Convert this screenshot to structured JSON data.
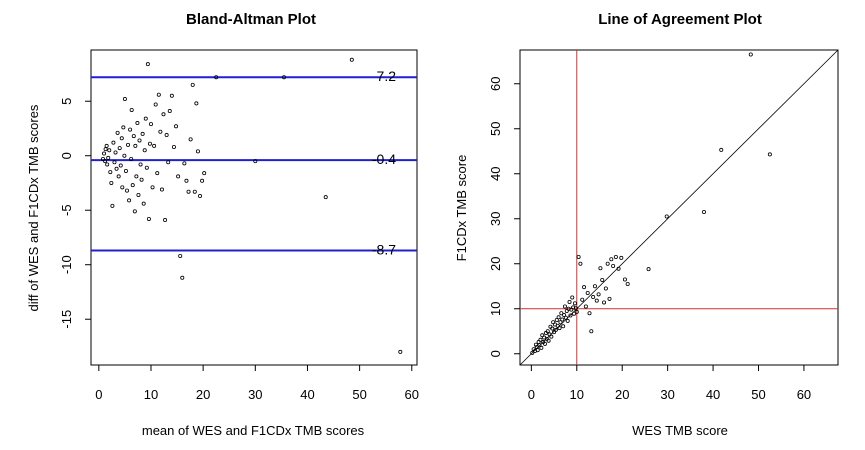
{
  "chart_data": [
    {
      "type": "scatter",
      "title": "Bland-Altman Plot",
      "xlabel": "mean of WES and F1CDx TMB scores",
      "ylabel": "diff of WES and F1CDx TMB scores",
      "xlim": [
        -1.5,
        61
      ],
      "ylim": [
        -19.2,
        9.7
      ],
      "xticks": [
        "0",
        "10",
        "20",
        "30",
        "40",
        "50",
        "60"
      ],
      "yticks": [
        "-15",
        "-10",
        "-5",
        "0",
        "5"
      ],
      "hlines": [
        {
          "y": 7.2,
          "label": "7.2"
        },
        {
          "y": -0.4,
          "label": "-0.4"
        },
        {
          "y": -8.7,
          "label": "-8.7"
        }
      ],
      "line_color": "#2020d0",
      "points": [
        [
          0.8,
          -0.3
        ],
        [
          1.0,
          0.2
        ],
        [
          1.2,
          -0.5
        ],
        [
          1.3,
          0.6
        ],
        [
          1.5,
          0.9
        ],
        [
          1.6,
          -0.8
        ],
        [
          1.8,
          -0.2
        ],
        [
          2.0,
          0.5
        ],
        [
          2.2,
          -1.5
        ],
        [
          2.4,
          -2.5
        ],
        [
          2.6,
          -4.6
        ],
        [
          2.8,
          1.2
        ],
        [
          3.0,
          -0.6
        ],
        [
          3.2,
          0.3
        ],
        [
          3.4,
          -1.2
        ],
        [
          3.6,
          2.1
        ],
        [
          3.8,
          -1.9
        ],
        [
          4.0,
          0.7
        ],
        [
          4.2,
          -0.9
        ],
        [
          4.4,
          1.6
        ],
        [
          4.5,
          -2.9
        ],
        [
          4.7,
          2.6
        ],
        [
          4.9,
          0.0
        ],
        [
          5.0,
          5.2
        ],
        [
          5.2,
          -1.4
        ],
        [
          5.4,
          -3.2
        ],
        [
          5.6,
          1.0
        ],
        [
          5.8,
          -4.1
        ],
        [
          6.0,
          2.4
        ],
        [
          6.2,
          -0.3
        ],
        [
          6.3,
          4.2
        ],
        [
          6.5,
          -2.7
        ],
        [
          6.7,
          1.8
        ],
        [
          6.9,
          -5.1
        ],
        [
          7.0,
          0.9
        ],
        [
          7.2,
          -1.9
        ],
        [
          7.4,
          3.0
        ],
        [
          7.6,
          -3.6
        ],
        [
          7.8,
          1.4
        ],
        [
          8.0,
          -0.8
        ],
        [
          8.2,
          -2.2
        ],
        [
          8.4,
          2.0
        ],
        [
          8.6,
          -4.4
        ],
        [
          8.8,
          0.5
        ],
        [
          9.0,
          3.4
        ],
        [
          9.2,
          -1.1
        ],
        [
          9.4,
          8.4
        ],
        [
          9.6,
          -5.8
        ],
        [
          9.8,
          1.1
        ],
        [
          10.0,
          2.9
        ],
        [
          10.3,
          -2.9
        ],
        [
          10.6,
          0.9
        ],
        [
          10.9,
          4.7
        ],
        [
          11.2,
          -1.6
        ],
        [
          11.5,
          5.6
        ],
        [
          11.8,
          2.2
        ],
        [
          12.1,
          -3.1
        ],
        [
          12.4,
          3.8
        ],
        [
          12.7,
          -5.9
        ],
        [
          13.0,
          1.9
        ],
        [
          13.3,
          -0.6
        ],
        [
          13.6,
          4.1
        ],
        [
          14.0,
          5.5
        ],
        [
          14.4,
          0.8
        ],
        [
          14.8,
          2.7
        ],
        [
          15.2,
          -1.9
        ],
        [
          15.6,
          -9.2
        ],
        [
          16.0,
          -11.2
        ],
        [
          16.4,
          -0.7
        ],
        [
          16.8,
          -2.3
        ],
        [
          17.2,
          -3.3
        ],
        [
          17.6,
          1.5
        ],
        [
          18.0,
          6.5
        ],
        [
          18.4,
          -3.3
        ],
        [
          18.7,
          4.8
        ],
        [
          19.0,
          0.4
        ],
        [
          19.4,
          -3.7
        ],
        [
          19.8,
          -2.3
        ],
        [
          20.2,
          -1.6
        ],
        [
          22.5,
          7.2
        ],
        [
          30.0,
          -0.5
        ],
        [
          35.5,
          7.2
        ],
        [
          43.5,
          -3.8
        ],
        [
          48.5,
          8.8
        ],
        [
          57.8,
          -18.0
        ]
      ]
    },
    {
      "type": "scatter",
      "title": "Line of Agreement Plot",
      "xlabel": "WES TMB score",
      "ylabel": "F1CDx TMB score",
      "xlim": [
        -2.5,
        67.5
      ],
      "ylim": [
        -2.5,
        67.5
      ],
      "xticks": [
        "0",
        "10",
        "20",
        "30",
        "40",
        "50",
        "60"
      ],
      "yticks": [
        "0",
        "10",
        "20",
        "30",
        "40",
        "50",
        "60"
      ],
      "reference_lines": {
        "diagonal": "y = x",
        "vertical_x": 10,
        "horizontal_y": 10
      },
      "ref_color": "#cc3333",
      "points": [
        [
          0.5,
          1.0
        ],
        [
          0.8,
          0.6
        ],
        [
          1.0,
          2.0
        ],
        [
          1.2,
          1.5
        ],
        [
          1.4,
          0.8
        ],
        [
          1.6,
          2.6
        ],
        [
          1.8,
          1.9
        ],
        [
          2.0,
          3.1
        ],
        [
          2.2,
          1.3
        ],
        [
          2.4,
          4.1
        ],
        [
          2.6,
          2.6
        ],
        [
          2.8,
          3.6
        ],
        [
          3.0,
          2.2
        ],
        [
          3.2,
          4.6
        ],
        [
          3.4,
          3.3
        ],
        [
          3.6,
          5.0
        ],
        [
          3.8,
          2.9
        ],
        [
          4.0,
          4.3
        ],
        [
          4.2,
          6.0
        ],
        [
          4.4,
          3.8
        ],
        [
          4.6,
          5.6
        ],
        [
          4.8,
          7.0
        ],
        [
          5.0,
          4.8
        ],
        [
          5.2,
          6.5
        ],
        [
          5.4,
          5.3
        ],
        [
          5.6,
          7.5
        ],
        [
          5.8,
          6.2
        ],
        [
          6.0,
          8.1
        ],
        [
          6.2,
          5.7
        ],
        [
          6.4,
          7.0
        ],
        [
          6.6,
          9.0
        ],
        [
          6.8,
          7.6
        ],
        [
          7.0,
          6.1
        ],
        [
          7.2,
          8.6
        ],
        [
          7.4,
          10.5
        ],
        [
          7.6,
          8.0
        ],
        [
          7.8,
          9.5
        ],
        [
          8.0,
          7.3
        ],
        [
          8.2,
          10.0
        ],
        [
          8.4,
          11.5
        ],
        [
          8.6,
          8.5
        ],
        [
          8.8,
          9.8
        ],
        [
          9.0,
          12.5
        ],
        [
          9.2,
          10.3
        ],
        [
          9.4,
          8.9
        ],
        [
          9.6,
          11.2
        ],
        [
          9.8,
          10.1
        ],
        [
          10.0,
          9.3
        ],
        [
          10.4,
          21.5
        ],
        [
          10.8,
          20.0
        ],
        [
          11.2,
          12.0
        ],
        [
          11.6,
          14.8
        ],
        [
          12.0,
          10.5
        ],
        [
          12.4,
          13.5
        ],
        [
          12.8,
          9.0
        ],
        [
          13.2,
          5.0
        ],
        [
          13.6,
          12.6
        ],
        [
          14.0,
          15.0
        ],
        [
          14.4,
          11.8
        ],
        [
          14.8,
          13.2
        ],
        [
          15.2,
          19.0
        ],
        [
          15.6,
          16.4
        ],
        [
          16.0,
          11.4
        ],
        [
          16.4,
          14.5
        ],
        [
          16.8,
          20.0
        ],
        [
          17.2,
          12.2
        ],
        [
          17.6,
          21.0
        ],
        [
          18.0,
          19.5
        ],
        [
          18.6,
          21.5
        ],
        [
          19.2,
          18.9
        ],
        [
          19.8,
          21.3
        ],
        [
          20.6,
          16.5
        ],
        [
          21.2,
          15.5
        ],
        [
          25.8,
          18.8
        ],
        [
          29.8,
          30.5
        ],
        [
          38.0,
          31.5
        ],
        [
          41.8,
          45.3
        ],
        [
          48.3,
          66.5
        ],
        [
          52.5,
          44.3
        ],
        [
          0.2,
          0.2
        ]
      ]
    }
  ]
}
